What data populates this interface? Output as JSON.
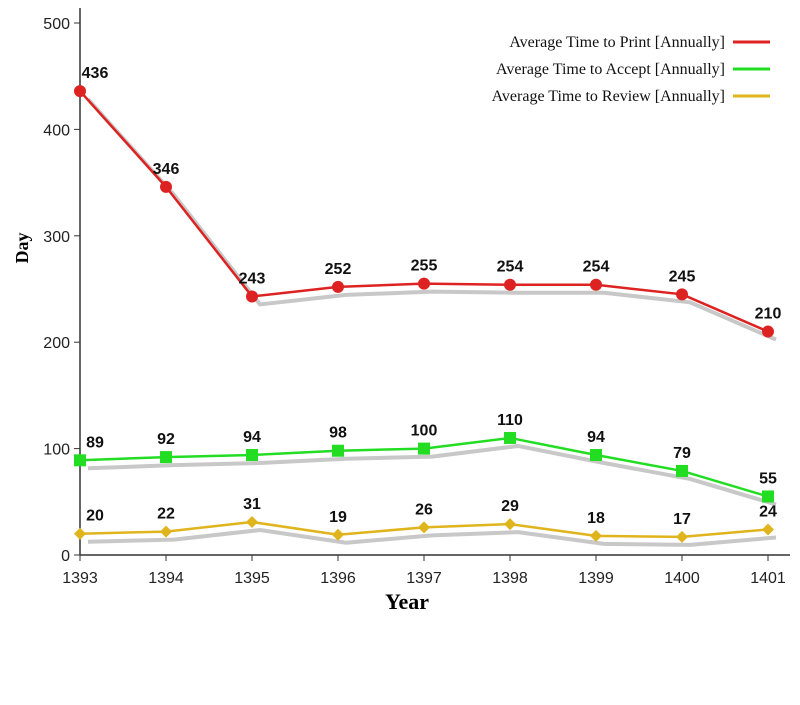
{
  "chart_data": {
    "type": "line",
    "title": "",
    "xlabel": "Year",
    "ylabel": "Day",
    "x": [
      "1393",
      "1394",
      "1395",
      "1396",
      "1397",
      "1398",
      "1399",
      "1400",
      "1401"
    ],
    "ylim": [
      0,
      500
    ],
    "yticks": [
      0,
      100,
      200,
      300,
      400,
      500
    ],
    "grid": false,
    "legend_position": "top-right",
    "series": [
      {
        "name": "Average Time to Print [Annually]",
        "values": [
          436,
          346,
          243,
          252,
          255,
          254,
          254,
          245,
          210
        ],
        "color": "#dd2222",
        "marker": "circle"
      },
      {
        "name": "Average Time to Accept [Annually]",
        "values": [
          89,
          92,
          94,
          98,
          100,
          110,
          94,
          79,
          55
        ],
        "color": "#22dd22",
        "marker": "square"
      },
      {
        "name": "Average Time to Review [Annually]",
        "values": [
          20,
          22,
          31,
          19,
          26,
          29,
          18,
          17,
          24
        ],
        "color": "#e0b41c",
        "marker": "diamond"
      }
    ]
  }
}
